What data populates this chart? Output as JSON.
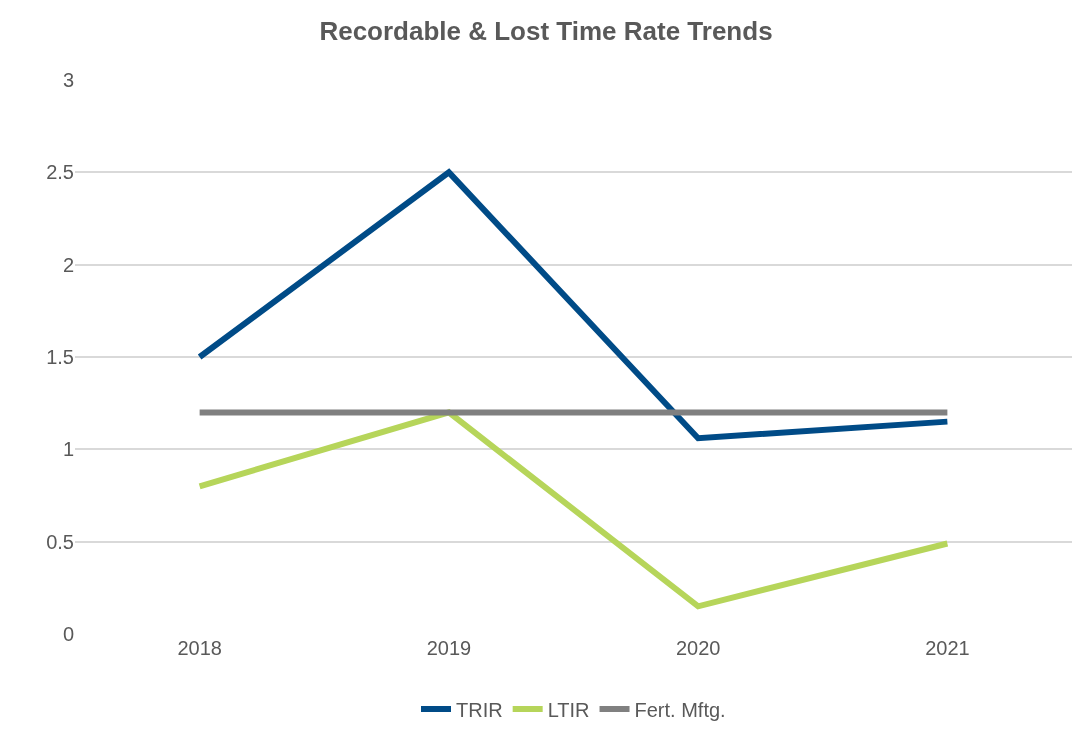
{
  "chart_data": {
    "type": "line",
    "title": "Recordable & Lost Time Rate Trends",
    "categories": [
      "2018",
      "2019",
      "2020",
      "2021"
    ],
    "series": [
      {
        "name": "TRIR",
        "color": "#004b87",
        "values": [
          1.5,
          2.5,
          1.06,
          1.15
        ]
      },
      {
        "name": "LTIR",
        "color": "#b6d55a",
        "values": [
          0.8,
          1.2,
          0.15,
          0.49
        ]
      },
      {
        "name": "Fert. Mftg.",
        "color": "#808080",
        "values": [
          1.2,
          1.2,
          1.2,
          1.2
        ]
      }
    ],
    "ylim": [
      0,
      3
    ],
    "yticks": [
      0,
      0.5,
      1,
      1.5,
      2,
      2.5,
      3
    ],
    "grid": "y",
    "legend": "bottom",
    "marker": "none",
    "line_style": "solid"
  }
}
